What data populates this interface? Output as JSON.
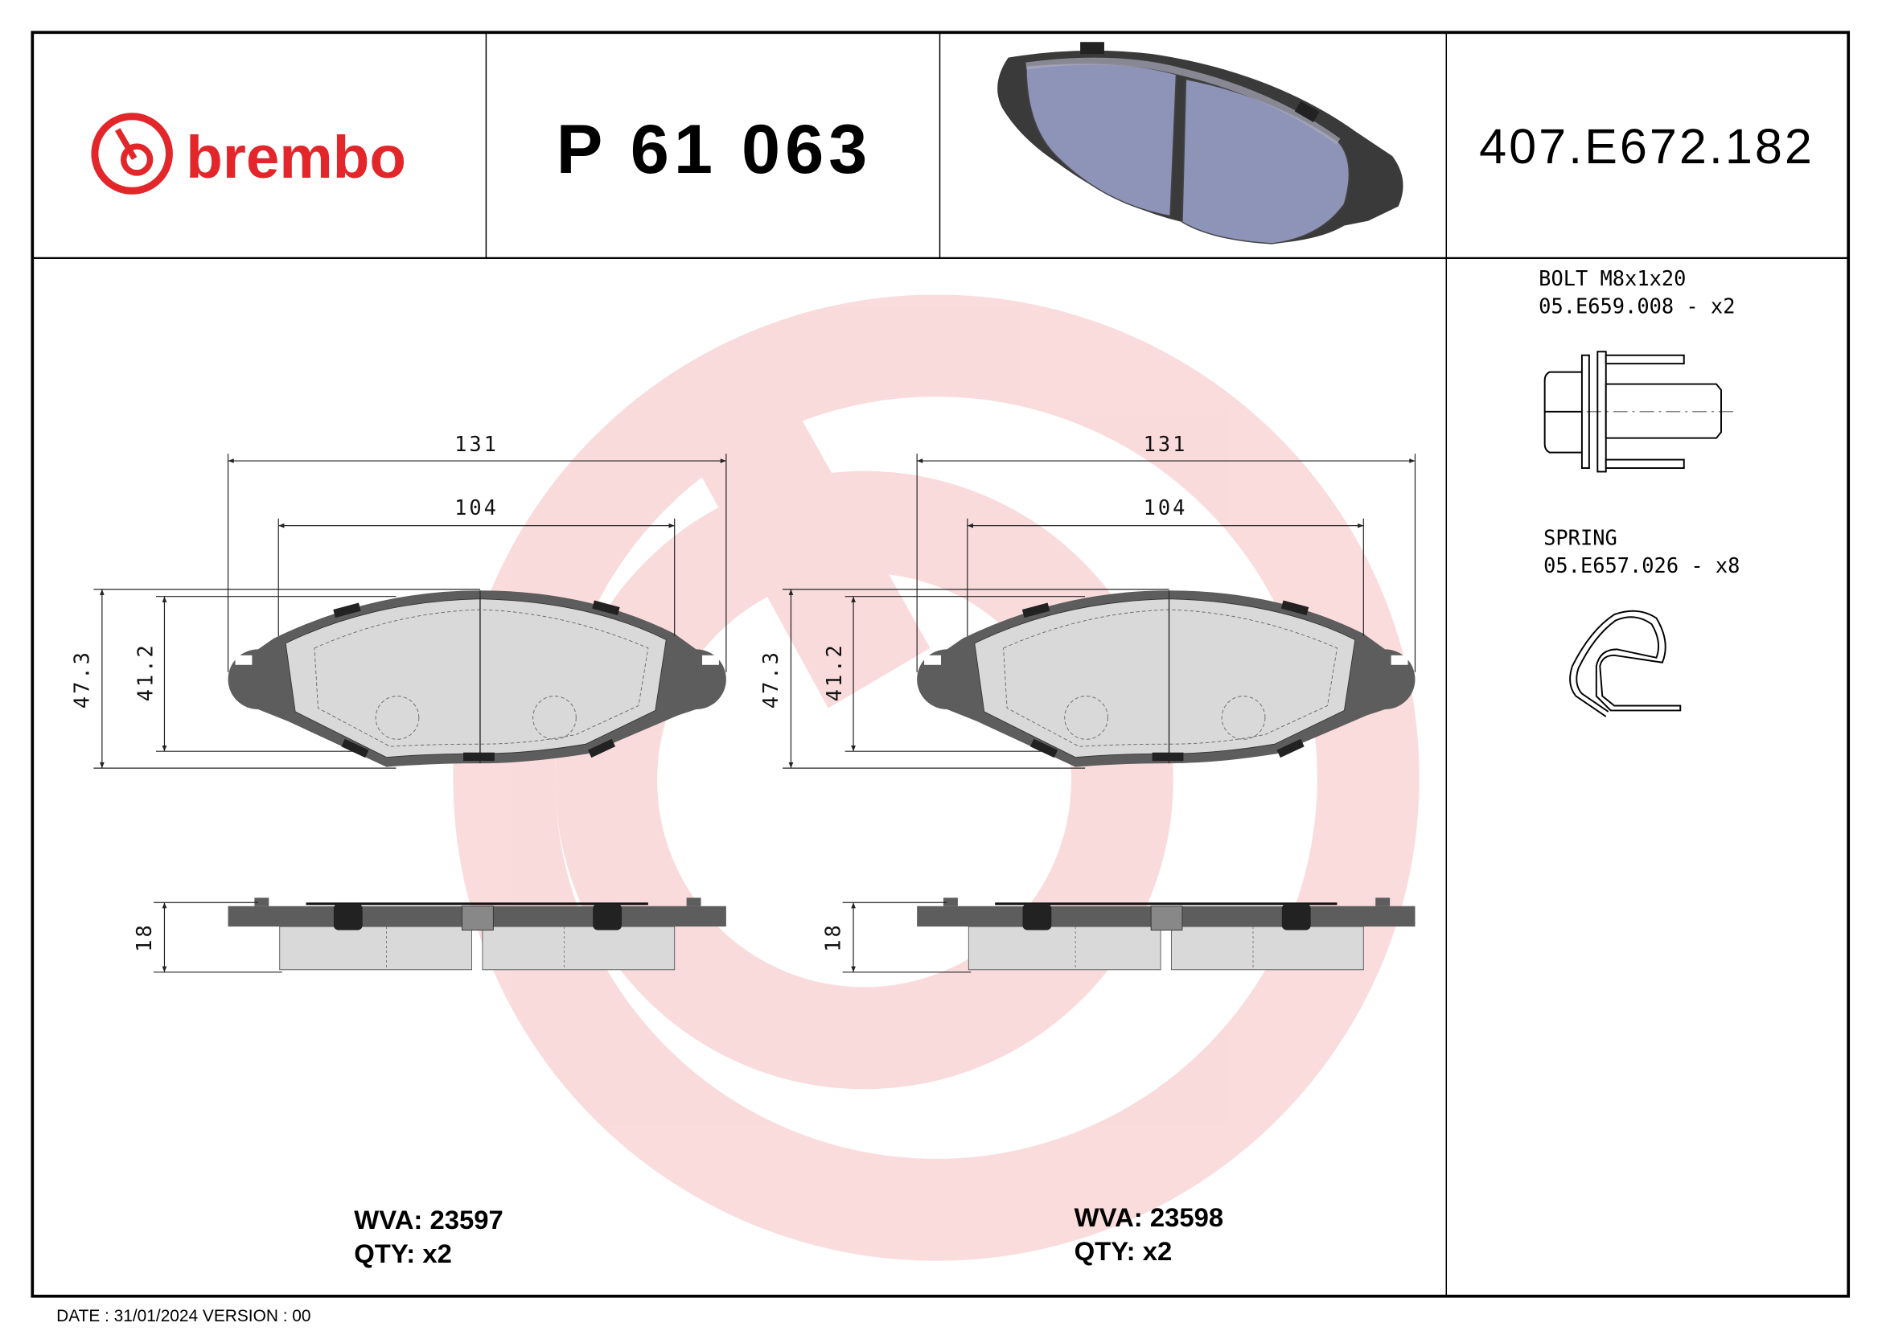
{
  "header": {
    "brand": "brembo",
    "part_number": "P 61 063",
    "code": "407.E672.182"
  },
  "brand_color": "#e2262a",
  "accessories": {
    "bolt": {
      "name": "BOLT M8x1x20",
      "code_qty": "05.E659.008 - x2"
    },
    "spring": {
      "name": "SPRING",
      "code_qty": "05.E657.026 - x8"
    }
  },
  "pads": [
    {
      "dims": {
        "width": "131",
        "inner": "104",
        "height": "47.3",
        "inner_height": "41.2",
        "thickness": "18"
      },
      "wva": "WVA: 23597",
      "qty": "QTY: x2"
    },
    {
      "dims": {
        "width": "131",
        "inner": "104",
        "height": "47.3",
        "inner_height": "41.2",
        "thickness": "18"
      },
      "wva": "WVA: 23598",
      "qty": "QTY: x2"
    }
  ],
  "footer": {
    "date_version": "DATE : 31/01/2024 VERSION : 00"
  }
}
